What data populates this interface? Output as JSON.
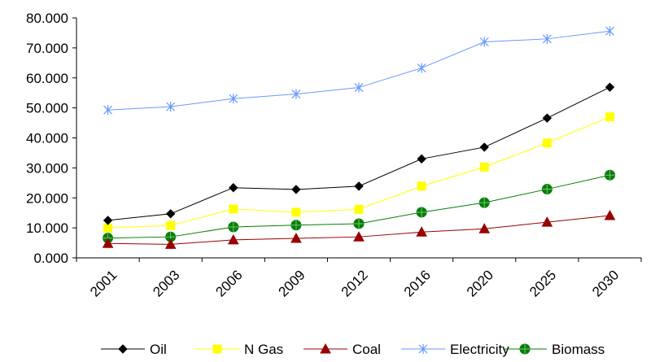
{
  "chart_data": {
    "type": "line",
    "categories": [
      "2001",
      "2003",
      "2006",
      "2009",
      "2012",
      "2016",
      "2020",
      "2025",
      "2030"
    ],
    "ylim": [
      0,
      80
    ],
    "y_ticks": [
      "0.000",
      "10.000",
      "20.000",
      "30.000",
      "40.000",
      "50.000",
      "60.000",
      "70.000",
      "80.000"
    ],
    "grid": false,
    "legend_position": "bottom",
    "series": [
      {
        "name": "Oil",
        "color": "#000000",
        "marker": "diamond",
        "values": [
          12.5,
          14.7,
          23.4,
          22.8,
          23.9,
          33.0,
          36.9,
          46.6,
          56.9
        ]
      },
      {
        "name": "N Gas",
        "color": "#FFFF00",
        "marker": "square",
        "values": [
          10.0,
          10.8,
          16.3,
          15.2,
          16.2,
          23.9,
          30.3,
          38.3,
          47.0
        ]
      },
      {
        "name": "Coal",
        "color": "#990000",
        "marker": "triangle",
        "values": [
          4.8,
          4.5,
          6.0,
          6.5,
          7.0,
          8.6,
          9.7,
          11.9,
          14.1
        ]
      },
      {
        "name": "Electricity",
        "color": "#6699FF",
        "marker": "asterisk",
        "values": [
          49.3,
          50.4,
          53.1,
          54.6,
          56.8,
          63.3,
          72.0,
          73.0,
          75.6
        ]
      },
      {
        "name": "Biomass",
        "color": "#008000",
        "marker": "circle-plus",
        "values": [
          6.6,
          7.0,
          10.3,
          10.9,
          11.4,
          15.2,
          18.4,
          22.9,
          27.6
        ]
      }
    ]
  }
}
